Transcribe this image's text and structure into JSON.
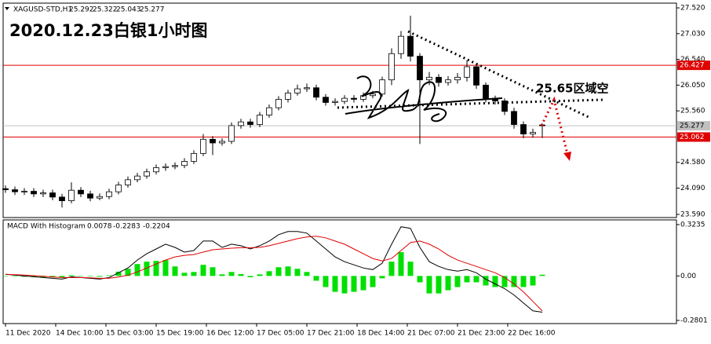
{
  "chart_data": [
    {
      "type": "candlestick",
      "symbol": "XAGUSD-STD,H1",
      "title": "2020.12.23白银1小时图",
      "annotation": "25.65区域空",
      "x": [
        0,
        3,
        6,
        9,
        12,
        15,
        18,
        21,
        24,
        27,
        30,
        33,
        36,
        39,
        42,
        45,
        48,
        51,
        54,
        57,
        60,
        63,
        66,
        69,
        72,
        75,
        78,
        81,
        84,
        87,
        90,
        93,
        96,
        99,
        102,
        105,
        108,
        111,
        114,
        117,
        120,
        123,
        126,
        129,
        132,
        135,
        138,
        141,
        144,
        147,
        150,
        153,
        156,
        159,
        162,
        165,
        168,
        171
      ],
      "xlim": [
        -0.75,
        213.75
      ],
      "xticks": [
        {
          "value": 0,
          "label": "11 Dec 2020"
        },
        {
          "value": 16,
          "label": "14 Dec 10:00"
        },
        {
          "value": 32,
          "label": "15 Dec 03:00"
        },
        {
          "value": 48,
          "label": "15 Dec 19:00"
        },
        {
          "value": 64,
          "label": "16 Dec 12:00"
        },
        {
          "value": 80,
          "label": "17 Dec 05:00"
        },
        {
          "value": 96,
          "label": "17 Dec 21:00"
        },
        {
          "value": 112,
          "label": "18 Dec 14:00"
        },
        {
          "value": 128,
          "label": "21 Dec 07:00"
        },
        {
          "value": 144,
          "label": "21 Dec 23:00"
        },
        {
          "value": 160,
          "label": "22 Dec 16:00"
        }
      ],
      "open": [
        24.08,
        24.06,
        24.02,
        24.03,
        23.98,
        24.0,
        23.92,
        23.85,
        24.05,
        23.98,
        23.9,
        23.93,
        24.02,
        24.15,
        24.25,
        24.32,
        24.4,
        24.48,
        24.5,
        24.52,
        24.6,
        24.75,
        25.02,
        24.95,
        24.98,
        25.28,
        25.35,
        25.3,
        25.48,
        25.62,
        25.78,
        25.9,
        25.98,
        26.0,
        25.82,
        25.72,
        25.74,
        25.8,
        25.78,
        25.85,
        25.88,
        26.15,
        26.65,
        26.98,
        26.6,
        26.15,
        26.2,
        26.1,
        26.15,
        26.2,
        26.4,
        26.05,
        25.8,
        25.75,
        25.55,
        25.3,
        25.12,
        25.292
      ],
      "high": [
        24.14,
        24.12,
        24.09,
        24.09,
        24.06,
        24.06,
        23.98,
        24.2,
        24.11,
        24.04,
        23.99,
        24.08,
        24.21,
        24.31,
        24.38,
        24.46,
        24.54,
        24.56,
        24.58,
        24.66,
        24.81,
        25.12,
        25.08,
        25.04,
        25.34,
        25.41,
        25.41,
        25.54,
        25.68,
        25.84,
        25.96,
        26.06,
        26.08,
        26.06,
        25.88,
        25.8,
        25.86,
        25.86,
        25.91,
        25.94,
        26.21,
        26.75,
        27.08,
        27.37,
        26.66,
        26.3,
        26.26,
        26.22,
        26.28,
        26.52,
        26.45,
        26.1,
        25.85,
        25.8,
        25.62,
        25.36,
        25.22,
        25.322
      ],
      "low": [
        24.0,
        23.96,
        23.96,
        23.92,
        23.92,
        23.86,
        23.72,
        23.8,
        23.92,
        23.84,
        23.86,
        23.88,
        23.97,
        24.1,
        24.2,
        24.27,
        24.35,
        24.42,
        24.45,
        24.47,
        24.55,
        24.7,
        24.72,
        24.9,
        24.93,
        25.22,
        25.24,
        25.25,
        25.43,
        25.57,
        25.72,
        25.85,
        25.92,
        25.76,
        25.66,
        25.66,
        25.69,
        25.72,
        25.73,
        25.8,
        25.83,
        26.05,
        26.55,
        26.5,
        24.93,
        26.05,
        26.02,
        26.04,
        26.08,
        26.12,
        25.98,
        25.72,
        25.68,
        25.48,
        25.22,
        25.04,
        25.05,
        25.043
      ],
      "close": [
        24.06,
        24.02,
        24.03,
        23.98,
        24.0,
        23.92,
        23.85,
        24.05,
        23.98,
        23.9,
        23.93,
        24.02,
        24.15,
        24.25,
        24.32,
        24.4,
        24.48,
        24.5,
        24.52,
        24.6,
        24.75,
        25.02,
        24.95,
        24.98,
        25.28,
        25.35,
        25.3,
        25.48,
        25.62,
        25.78,
        25.9,
        25.98,
        26.0,
        25.82,
        25.72,
        25.74,
        25.8,
        25.78,
        25.85,
        25.88,
        26.15,
        26.65,
        26.98,
        26.6,
        26.15,
        26.2,
        26.1,
        26.15,
        26.2,
        26.4,
        26.05,
        25.8,
        25.75,
        25.55,
        25.3,
        25.12,
        25.15,
        25.277
      ],
      "up_color": "#ffffff",
      "down_color": "#000000",
      "ylim": [
        23.53,
        27.61
      ],
      "yticks": [
        {
          "value": 27.52,
          "label": "27.520"
        },
        {
          "value": 27.03,
          "label": "27.030"
        },
        {
          "value": 26.54,
          "label": "26.540"
        },
        {
          "value": 26.05,
          "label": "26.050"
        },
        {
          "value": 25.56,
          "label": "25.560"
        },
        {
          "value": 24.58,
          "label": "24.580"
        },
        {
          "value": 24.09,
          "label": "24.090"
        },
        {
          "value": 23.59,
          "label": "23.590"
        }
      ],
      "hlines": [
        {
          "value": 26.427,
          "color": "#e00000"
        },
        {
          "value": 25.062,
          "color": "#e00000"
        }
      ],
      "last_color": "#c0c0c0"
    },
    {
      "type": "macd",
      "title": "MACD With Histogram",
      "ylim": [
        -0.3,
        0.353
      ],
      "yticks": [
        0.3235,
        {
          "value": 0,
          "label": "0.00"
        },
        -0.2801
      ],
      "series": [
        {
          "color": "#00e000",
          "values": [
            0.0,
            -0.003,
            -0.005,
            -0.007,
            -0.008,
            -0.009,
            -0.01,
            0.005,
            0.0,
            -0.003,
            -0.005,
            0.004,
            0.027,
            0.045,
            0.075,
            0.09,
            0.095,
            0.1,
            0.06,
            0.02,
            0.025,
            0.07,
            0.055,
            0.01,
            0.025,
            0.012,
            -0.008,
            0.01,
            0.03,
            0.055,
            0.06,
            0.045,
            0.025,
            -0.03,
            -0.07,
            -0.1,
            -0.11,
            -0.1,
            -0.09,
            -0.07,
            -0.015,
            0.09,
            0.15,
            0.09,
            -0.04,
            -0.11,
            -0.11,
            -0.09,
            -0.07,
            -0.04,
            -0.04,
            -0.06,
            -0.07,
            -0.07,
            -0.07,
            -0.07,
            -0.06,
            0.0078
          ]
        },
        {
          "color": "#000000",
          "values": [
            0.01,
            0.005,
            0.0,
            -0.005,
            -0.01,
            -0.015,
            -0.02,
            -0.005,
            -0.01,
            -0.015,
            -0.02,
            -0.01,
            0.02,
            0.05,
            0.1,
            0.14,
            0.17,
            0.2,
            0.18,
            0.15,
            0.16,
            0.22,
            0.22,
            0.18,
            0.2,
            0.19,
            0.17,
            0.19,
            0.22,
            0.26,
            0.28,
            0.28,
            0.27,
            0.22,
            0.17,
            0.12,
            0.09,
            0.07,
            0.05,
            0.04,
            0.08,
            0.2,
            0.31,
            0.3,
            0.18,
            0.09,
            0.06,
            0.04,
            0.03,
            0.04,
            0.02,
            -0.02,
            -0.05,
            -0.08,
            -0.12,
            -0.17,
            -0.22,
            -0.2283
          ]
        },
        {
          "color": "#e00000",
          "values": [
            0.01,
            0.008,
            0.005,
            0.002,
            -0.002,
            -0.006,
            -0.01,
            -0.01,
            -0.01,
            -0.012,
            -0.015,
            -0.014,
            -0.007,
            0.005,
            0.025,
            0.05,
            0.075,
            0.1,
            0.12,
            0.13,
            0.135,
            0.15,
            0.165,
            0.17,
            0.175,
            0.178,
            0.178,
            0.18,
            0.19,
            0.205,
            0.22,
            0.235,
            0.245,
            0.25,
            0.24,
            0.22,
            0.2,
            0.17,
            0.14,
            0.11,
            0.095,
            0.11,
            0.16,
            0.21,
            0.22,
            0.2,
            0.17,
            0.13,
            0.1,
            0.08,
            0.06,
            0.04,
            0.02,
            -0.01,
            -0.05,
            -0.1,
            -0.16,
            -0.2204
          ]
        }
      ]
    }
  ]
}
